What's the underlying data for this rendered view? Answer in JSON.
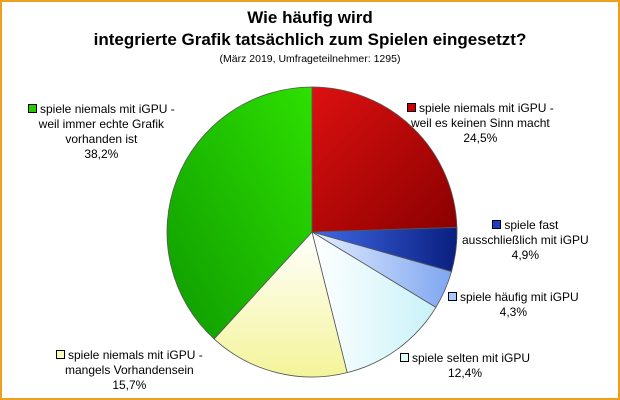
{
  "chart_data": {
    "type": "pie",
    "title_line1": "Wie häufig wird",
    "title_line2": "integrierte Grafik tatsächlich zum Spielen eingesetzt?",
    "subtitle": "(März 2019, Umfrageteilnehmer: 1295)",
    "slices": [
      {
        "line1": "spiele niemals mit iGPU -",
        "line2": "weil es keinen Sinn macht",
        "line3": "",
        "value_label": "24,5%",
        "value": 24.5,
        "color": "#cc0000"
      },
      {
        "line1": "spiele fast",
        "line2": "ausschließlich mit iGPU",
        "line3": "",
        "value_label": "4,9%",
        "value": 4.9,
        "color": "#1a3ccc"
      },
      {
        "line1": "spiele häufig mit iGPU",
        "line2": "",
        "line3": "",
        "value_label": "4,3%",
        "value": 4.3,
        "color": "#a8c8ff"
      },
      {
        "line1": "spiele selten mit iGPU",
        "line2": "",
        "line3": "",
        "value_label": "12,4%",
        "value": 12.4,
        "color": "#e0fafc"
      },
      {
        "line1": "spiele niemals mit iGPU -",
        "line2": "mangels Vorhandensein",
        "line3": "",
        "value_label": "15,7%",
        "value": 15.7,
        "color": "#fcfcbc"
      },
      {
        "line1": "spiele niemals mit iGPU -",
        "line2": "weil immer echte Grafik",
        "line3": "vorhanden ist",
        "value_label": "38,2%",
        "value": 38.2,
        "color": "#22cc00"
      }
    ]
  }
}
